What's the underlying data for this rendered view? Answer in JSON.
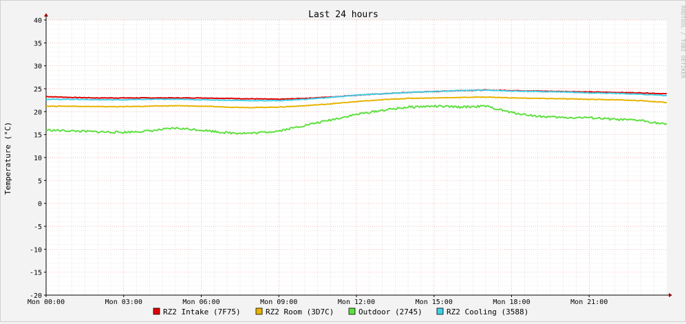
{
  "chart_data": {
    "type": "line",
    "title": "Last 24 hours",
    "ylabel": "Temperature (°C)",
    "watermark": "RRDTOOL / TOBI OETIKER",
    "ylim": [
      -20,
      40
    ],
    "yticks": [
      "40",
      "35",
      "30",
      "25",
      "20",
      "15",
      "10",
      "5",
      "0",
      "-5",
      "-10",
      "-15",
      "-20"
    ],
    "xlim": [
      0,
      24
    ],
    "xticks": [
      {
        "h": 0,
        "label": "Mon 00:00"
      },
      {
        "h": 3,
        "label": "Mon 03:00"
      },
      {
        "h": 6,
        "label": "Mon 06:00"
      },
      {
        "h": 9,
        "label": "Mon 09:00"
      },
      {
        "h": 12,
        "label": "Mon 12:00"
      },
      {
        "h": 15,
        "label": "Mon 15:00"
      },
      {
        "h": 18,
        "label": "Mon 18:00"
      },
      {
        "h": 21,
        "label": "Mon 21:00"
      }
    ],
    "grid": true,
    "legend_position": "bottom",
    "series": [
      {
        "name": "RZ2 Intake (7F75)",
        "color": "#e00000",
        "x": [
          0,
          1,
          2,
          3,
          4,
          5,
          6,
          7,
          8,
          9,
          10,
          11,
          12,
          13,
          14,
          15,
          16,
          17,
          18,
          19,
          20,
          21,
          22,
          23,
          24
        ],
        "y": [
          23.3,
          23.1,
          23.0,
          23.0,
          23.0,
          23.0,
          23.0,
          22.9,
          22.8,
          22.7,
          22.9,
          23.2,
          23.6,
          23.9,
          24.2,
          24.4,
          24.6,
          24.7,
          24.6,
          24.5,
          24.4,
          24.3,
          24.2,
          24.1,
          23.9
        ]
      },
      {
        "name": "RZ2 Room (3D7C)",
        "color": "#e8b400",
        "x": [
          0,
          1,
          2,
          3,
          4,
          5,
          6,
          7,
          8,
          9,
          10,
          11,
          12,
          13,
          14,
          15,
          16,
          17,
          18,
          19,
          20,
          21,
          22,
          23,
          24
        ],
        "y": [
          21.2,
          21.2,
          21.1,
          21.1,
          21.2,
          21.3,
          21.2,
          21.0,
          20.9,
          21.0,
          21.3,
          21.7,
          22.2,
          22.6,
          22.9,
          23.0,
          23.1,
          23.2,
          23.0,
          22.9,
          22.8,
          22.7,
          22.6,
          22.4,
          22.0
        ]
      },
      {
        "name": "Outdoor (2745)",
        "color": "#5ee040",
        "x": [
          0,
          1,
          2,
          3,
          4,
          5,
          6,
          7,
          8,
          9,
          10,
          11,
          12,
          13,
          14,
          15,
          16,
          17,
          18,
          19,
          20,
          21,
          22,
          23,
          24
        ],
        "y": [
          16.0,
          15.8,
          15.6,
          15.5,
          15.8,
          16.4,
          16.0,
          15.4,
          15.3,
          15.8,
          17.0,
          18.2,
          19.4,
          20.3,
          21.0,
          21.2,
          21.0,
          21.2,
          19.8,
          19.0,
          18.7,
          18.7,
          18.3,
          18.1,
          17.2
        ]
      },
      {
        "name": "RZ2 Cooling (3588)",
        "color": "#40d0e8",
        "x": [
          0,
          1,
          2,
          3,
          4,
          5,
          6,
          7,
          8,
          9,
          10,
          11,
          12,
          13,
          14,
          15,
          16,
          17,
          18,
          19,
          20,
          21,
          22,
          23,
          24
        ],
        "y": [
          22.7,
          22.7,
          22.6,
          22.6,
          22.7,
          22.7,
          22.6,
          22.5,
          22.4,
          22.4,
          22.7,
          23.1,
          23.6,
          23.9,
          24.2,
          24.4,
          24.6,
          24.7,
          24.5,
          24.4,
          24.3,
          24.1,
          24.0,
          23.8,
          23.5
        ]
      }
    ]
  }
}
